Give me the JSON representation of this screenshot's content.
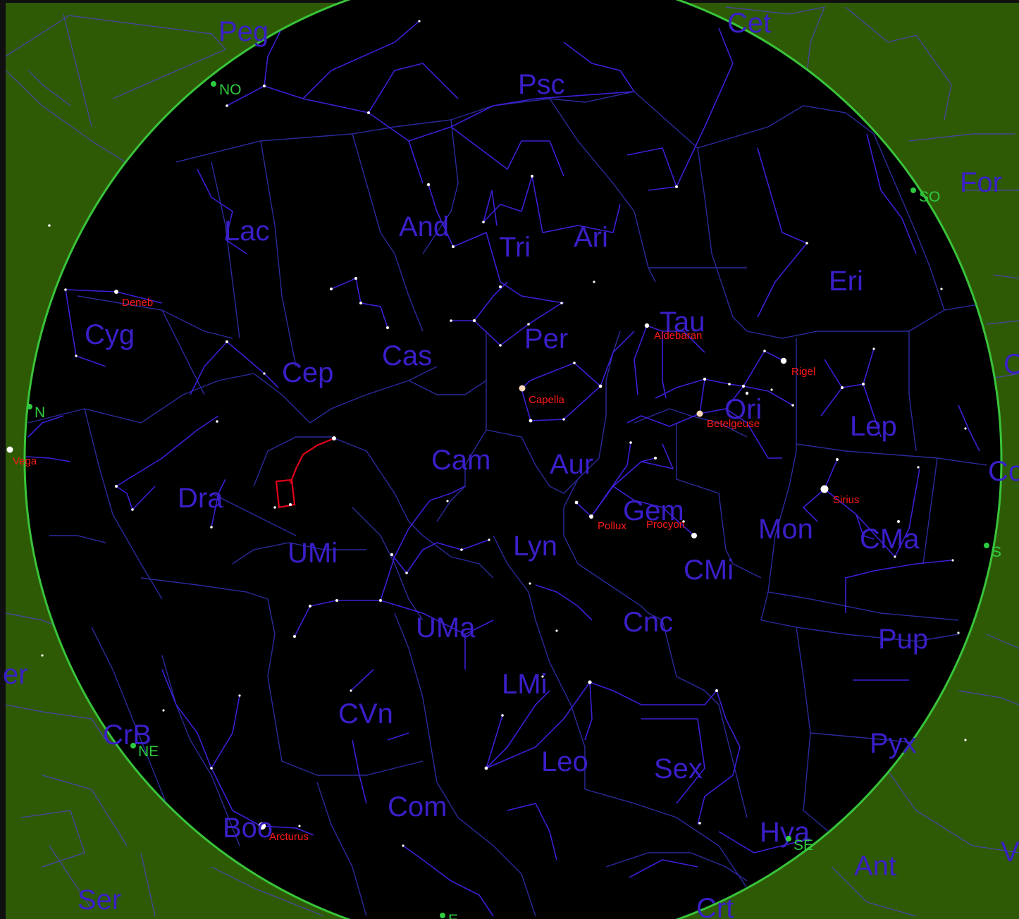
{
  "colors": {
    "ground": "#2e5a06",
    "sky": "#000000",
    "horizon": "#39c43a",
    "constellation_label": "#3a1fc8",
    "star_label": "#ff1a1a",
    "direction_marker": "#2ecc40",
    "figure_lines": "#3c1fd6",
    "highlight_figure": "#e0001a"
  },
  "constellations": [
    "Peg",
    "Cet",
    "Psc",
    "For",
    "Lac",
    "And",
    "Tri",
    "Ari",
    "Eri",
    "Cyg",
    "Tau",
    "Cas",
    "Per",
    "Cep",
    "Ori",
    "Lep",
    "Cam",
    "Aur",
    "Dra",
    "Gem",
    "Mon",
    "CMa",
    "UMi",
    "Lyn",
    "CMi",
    "Cnc",
    "UMa",
    "Pup",
    "LMi",
    "CVn",
    "CrB",
    "Pyx",
    "Leo",
    "Sex",
    "Com",
    "Boo",
    "Hya",
    "Ant",
    "Ser",
    "Crt",
    "er",
    "C",
    "Co",
    "V"
  ],
  "named_stars": [
    "Deneb",
    "Aldebaran",
    "Rigel",
    "Capella",
    "Betelgeuse",
    "Vega",
    "Sirius",
    "Pollux",
    "Procyon",
    "Arcturus"
  ],
  "directions": [
    "NO",
    "SO",
    "N",
    "S",
    "NE",
    "SE",
    "E"
  ]
}
